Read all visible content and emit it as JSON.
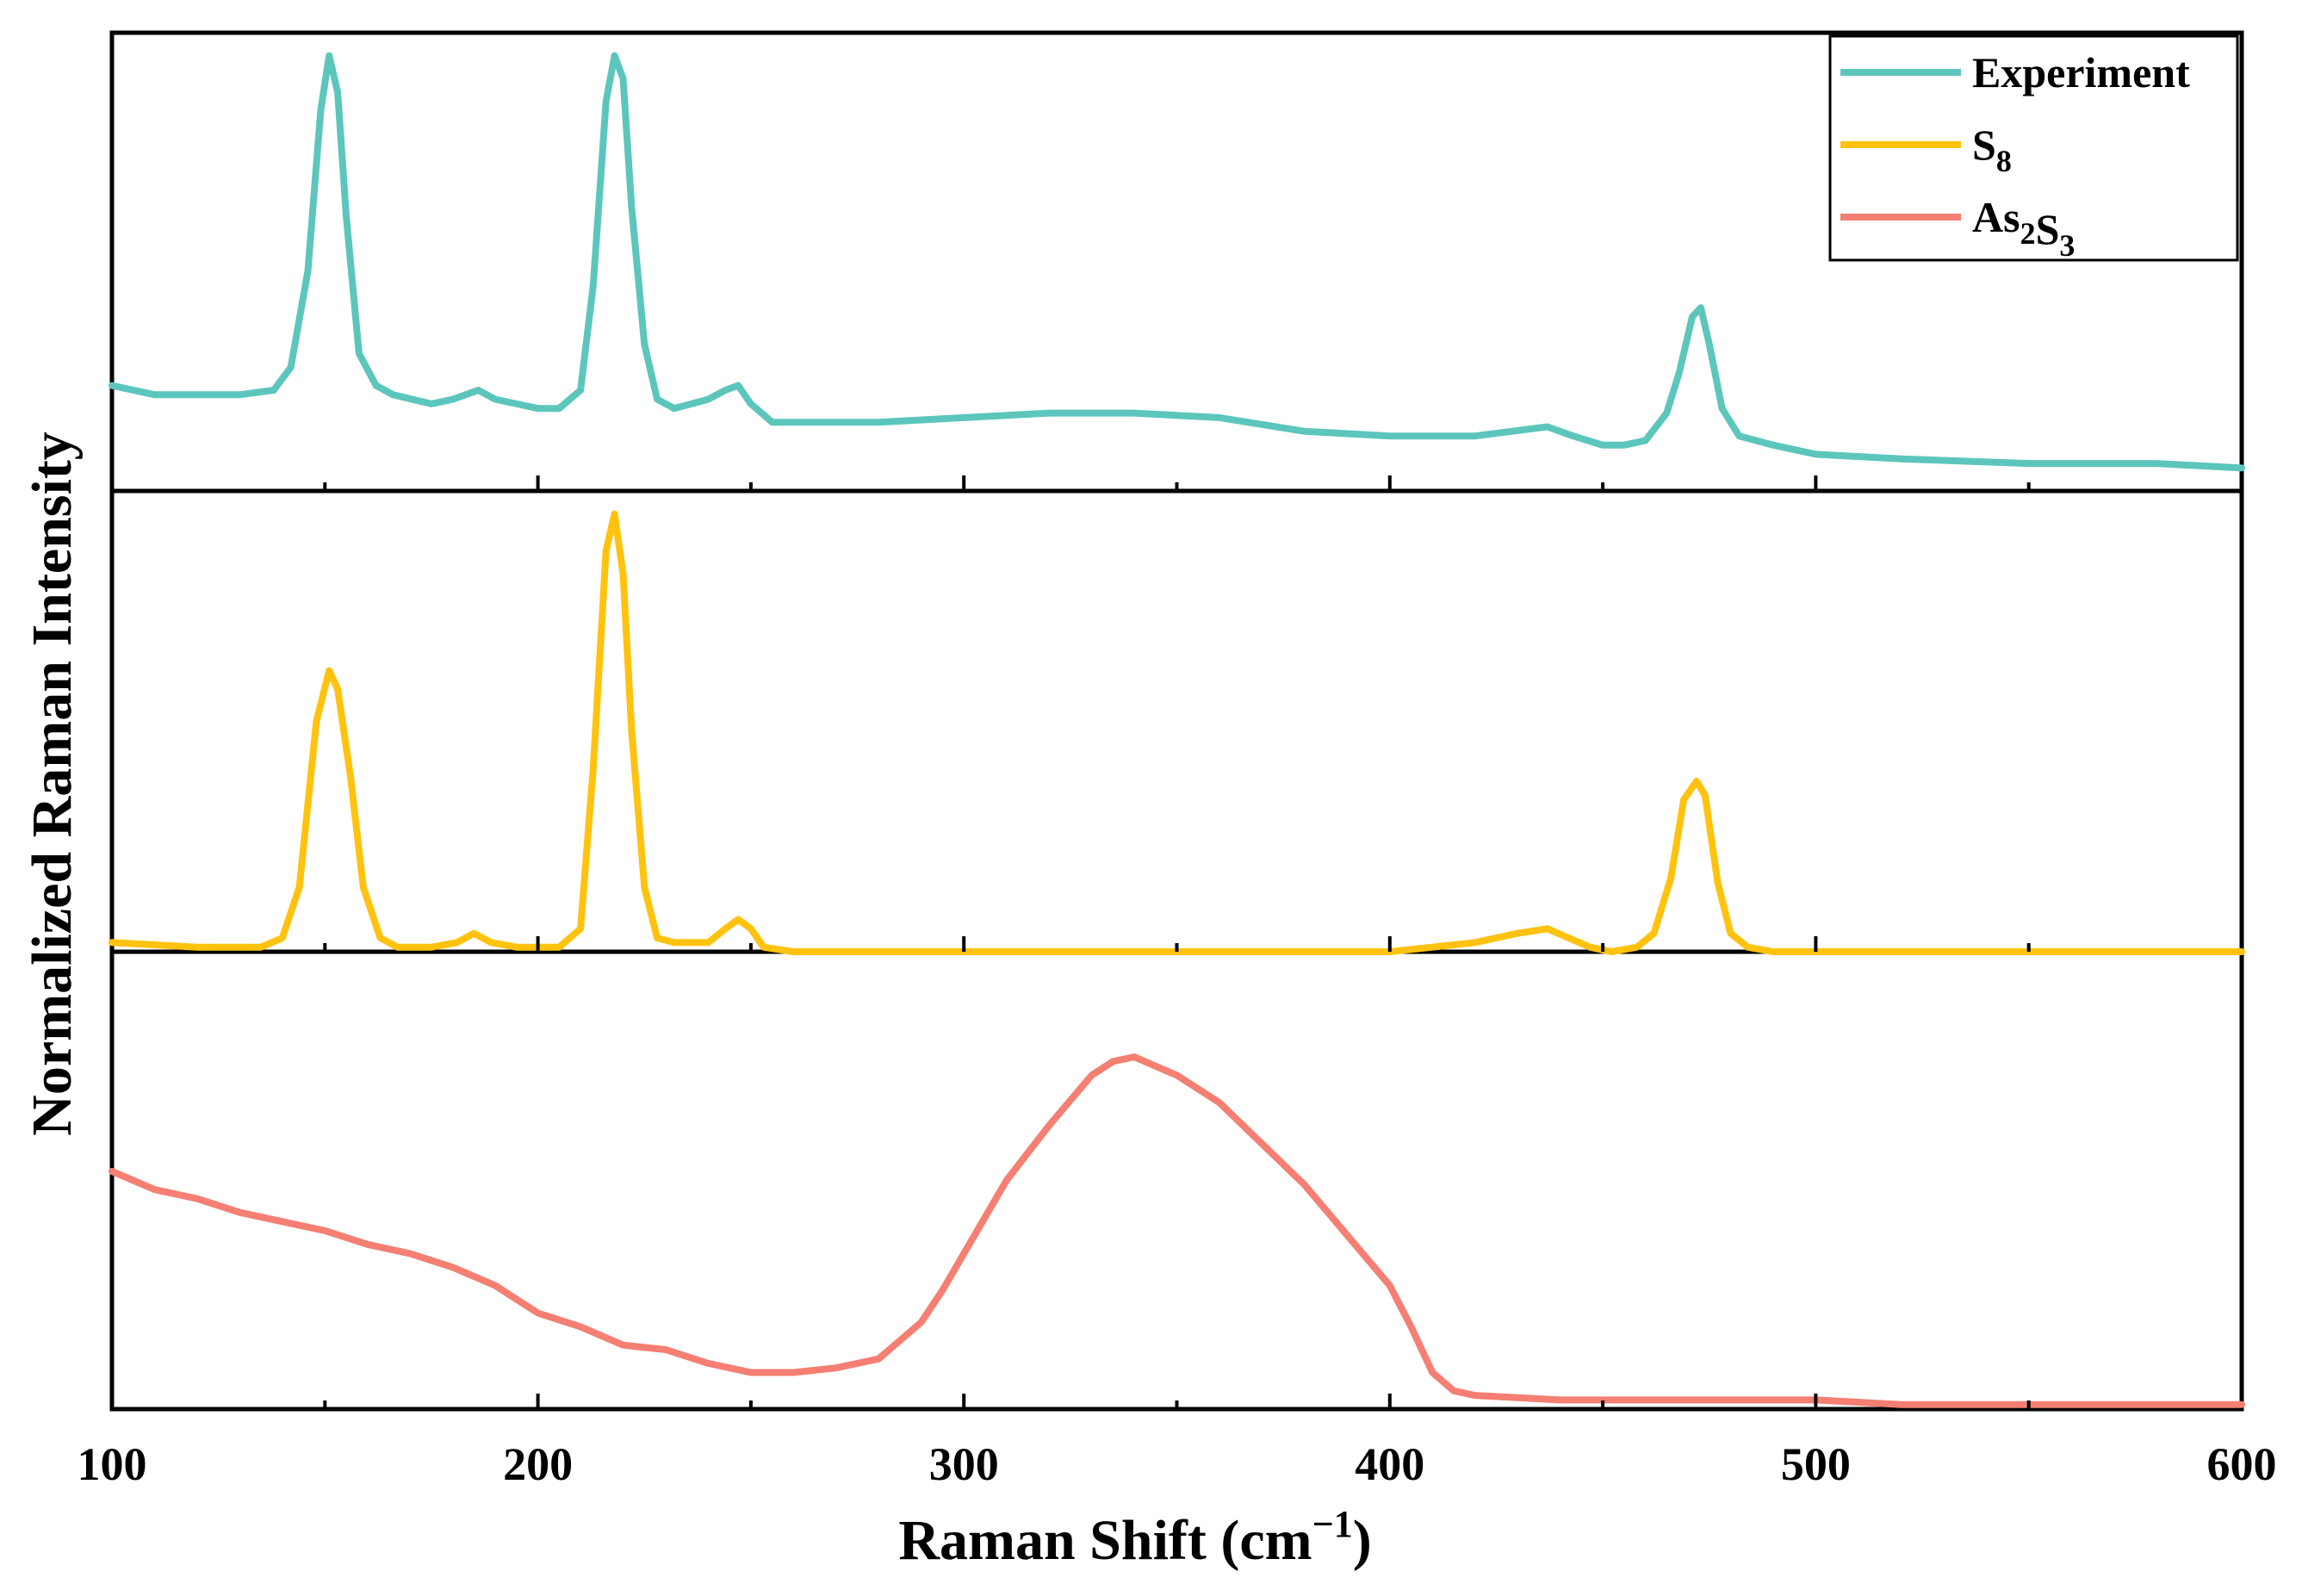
{
  "chart_data": {
    "type": "line",
    "layout": "stacked-panels",
    "xlabel": "Raman Shift (cm",
    "xlabel_sup": "−1",
    "xlabel_close": ")",
    "ylabel": "Normalized Raman Intensity",
    "xlim": [
      100,
      600
    ],
    "x_ticks": [
      100,
      200,
      300,
      400,
      500,
      600
    ],
    "x_tick_labels": [
      "100",
      "200",
      "300",
      "400",
      "500",
      "600"
    ],
    "panel_ylim": [
      0,
      1
    ],
    "legend": {
      "position": "top-right",
      "entries": [
        {
          "series": "experiment",
          "text": "Experiment",
          "color": "#5cc6bd"
        },
        {
          "series": "s8",
          "parts": [
            {
              "t": "S",
              "sub": "8"
            }
          ],
          "color": "#ffc20e"
        },
        {
          "series": "as2s3",
          "parts": [
            {
              "t": "As",
              "sub": "2"
            },
            {
              "t": "S",
              "sub": "3"
            }
          ],
          "color": "#f47f72"
        }
      ]
    },
    "series": [
      {
        "name": "Experiment",
        "panel": 0,
        "color": "#5cc6bd",
        "x": [
          100,
          110,
          120,
          130,
          138,
          142,
          146,
          149,
          151,
          153,
          155,
          158,
          162,
          166,
          175,
          180,
          186,
          190,
          195,
          200,
          205,
          210,
          213,
          216,
          218,
          220,
          222,
          225,
          228,
          232,
          240,
          244,
          247,
          250,
          255,
          265,
          280,
          300,
          320,
          340,
          360,
          380,
          400,
          420,
          437,
          443,
          450,
          455,
          460,
          465,
          468,
          471,
          473,
          475,
          478,
          482,
          490,
          500,
          520,
          550,
          580,
          600
        ],
        "y": [
          0.23,
          0.21,
          0.21,
          0.21,
          0.22,
          0.27,
          0.48,
          0.83,
          0.95,
          0.87,
          0.6,
          0.3,
          0.23,
          0.21,
          0.19,
          0.2,
          0.22,
          0.2,
          0.19,
          0.18,
          0.18,
          0.22,
          0.45,
          0.85,
          0.95,
          0.9,
          0.62,
          0.32,
          0.2,
          0.18,
          0.2,
          0.22,
          0.23,
          0.19,
          0.15,
          0.15,
          0.15,
          0.16,
          0.17,
          0.17,
          0.16,
          0.13,
          0.12,
          0.12,
          0.14,
          0.12,
          0.1,
          0.1,
          0.11,
          0.17,
          0.26,
          0.38,
          0.4,
          0.32,
          0.18,
          0.12,
          0.1,
          0.08,
          0.07,
          0.06,
          0.06,
          0.05
        ]
      },
      {
        "name": "S8",
        "panel": 1,
        "color": "#ffc20e",
        "x": [
          100,
          120,
          135,
          140,
          144,
          148,
          151,
          153,
          156,
          159,
          163,
          167,
          175,
          181,
          185,
          189,
          195,
          205,
          210,
          213,
          216,
          218,
          220,
          222,
          225,
          228,
          232,
          240,
          244,
          247,
          250,
          253,
          260,
          280,
          300,
          320,
          340,
          360,
          380,
          400,
          420,
          430,
          437,
          442,
          447,
          452,
          458,
          462,
          466,
          469,
          472,
          474,
          477,
          480,
          484,
          490,
          500,
          550,
          600
        ],
        "y": [
          0.02,
          0.01,
          0.01,
          0.03,
          0.14,
          0.5,
          0.61,
          0.57,
          0.38,
          0.14,
          0.03,
          0.01,
          0.01,
          0.02,
          0.04,
          0.02,
          0.01,
          0.01,
          0.05,
          0.4,
          0.87,
          0.95,
          0.82,
          0.48,
          0.14,
          0.03,
          0.02,
          0.02,
          0.05,
          0.07,
          0.05,
          0.01,
          0.0,
          0.0,
          0.0,
          0.0,
          0.0,
          0.0,
          0.0,
          0.0,
          0.02,
          0.04,
          0.05,
          0.03,
          0.01,
          0.0,
          0.01,
          0.04,
          0.16,
          0.33,
          0.37,
          0.34,
          0.15,
          0.04,
          0.01,
          0.0,
          0.0,
          0.0,
          0.0
        ]
      },
      {
        "name": "As2S3",
        "panel": 2,
        "color": "#f47f72",
        "x": [
          100,
          110,
          120,
          130,
          140,
          150,
          160,
          170,
          180,
          190,
          200,
          210,
          220,
          230,
          240,
          250,
          255,
          260,
          270,
          280,
          290,
          295,
          300,
          310,
          320,
          330,
          335,
          340,
          345,
          350,
          360,
          370,
          380,
          390,
          400,
          405,
          410,
          415,
          420,
          440,
          460,
          480,
          500,
          520,
          550,
          580,
          600
        ],
        "y": [
          0.52,
          0.48,
          0.46,
          0.43,
          0.41,
          0.39,
          0.36,
          0.34,
          0.31,
          0.27,
          0.21,
          0.18,
          0.14,
          0.13,
          0.1,
          0.08,
          0.08,
          0.08,
          0.09,
          0.11,
          0.19,
          0.26,
          0.34,
          0.5,
          0.62,
          0.73,
          0.76,
          0.77,
          0.75,
          0.73,
          0.67,
          0.58,
          0.49,
          0.38,
          0.27,
          0.18,
          0.08,
          0.04,
          0.03,
          0.02,
          0.02,
          0.02,
          0.02,
          0.01,
          0.01,
          0.01,
          0.01
        ]
      }
    ]
  }
}
